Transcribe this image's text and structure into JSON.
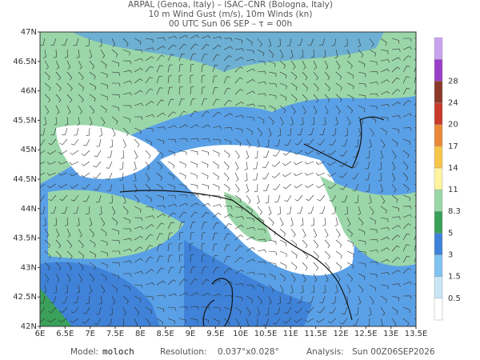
{
  "header": {
    "line1": "ARPAL (Genoa, Italy)  –  ISAC–CNR (Bologna, Italy)",
    "line2": "10 m Wind Gust (m/s), 10m Winds (kn)",
    "line3": "00 UTC Sun 06 SEP  –  τ = 00h"
  },
  "map": {
    "lon_labels": [
      "6E",
      "6.5E",
      "7E",
      "7.5E",
      "8E",
      "8.5E",
      "9E",
      "9.5E",
      "10E",
      "10.5E",
      "11E",
      "11.5E",
      "12E",
      "12.5E",
      "13E",
      "13.5E"
    ],
    "lat_labels": [
      "42N",
      "42.5N",
      "43N",
      "43.5N",
      "44N",
      "44.5N",
      "45N",
      "45.5N",
      "46N",
      "46.5N",
      "47N"
    ]
  },
  "colorbar": {
    "labels": [
      "0.5",
      "1.5",
      "3",
      "5",
      "8.3",
      "11",
      "14",
      "17",
      "20",
      "24",
      "28"
    ]
  },
  "footer": {
    "model_label": "Model:",
    "model": "moloch",
    "resolution_label": "Resolution:",
    "resolution": "0.037°x0.028°",
    "analysis_label": "Analysis:",
    "analysis": "Sun 00Z06SEP2026"
  }
}
